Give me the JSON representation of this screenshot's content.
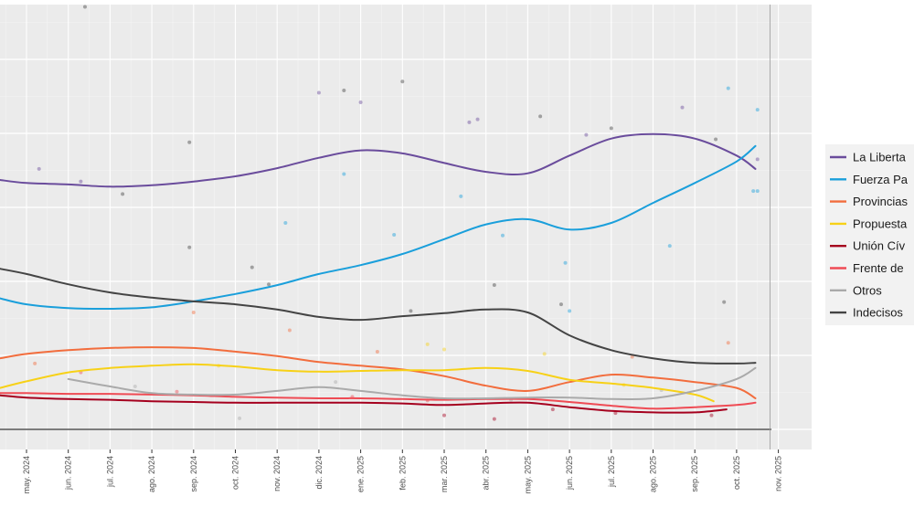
{
  "chart_data": {
    "type": "line",
    "title": "",
    "xlabel": "",
    "ylabel": "",
    "x_unit": "months since may. 2024",
    "x_range": [
      -0.63,
      18.8
    ],
    "ylim": [
      -2.7,
      57.7
    ],
    "grid": true,
    "legend_position": "right",
    "x_ticks": [
      {
        "pos": 0,
        "label": "may. 2024"
      },
      {
        "pos": 1,
        "label": "jun. 2024"
      },
      {
        "pos": 2,
        "label": "jul. 2024"
      },
      {
        "pos": 3,
        "label": "ago. 2024"
      },
      {
        "pos": 4,
        "label": "sep. 2024"
      },
      {
        "pos": 5,
        "label": "oct. 2024"
      },
      {
        "pos": 6,
        "label": "nov. 2024"
      },
      {
        "pos": 7,
        "label": "dic. 2024"
      },
      {
        "pos": 8,
        "label": "ene. 2025"
      },
      {
        "pos": 9,
        "label": "feb. 2025"
      },
      {
        "pos": 10,
        "label": "mar. 2025"
      },
      {
        "pos": 11,
        "label": "abr. 2025"
      },
      {
        "pos": 12,
        "label": "may. 2025"
      },
      {
        "pos": 13,
        "label": "jun. 2025"
      },
      {
        "pos": 14,
        "label": "jul. 2025"
      },
      {
        "pos": 15,
        "label": "ago. 2025"
      },
      {
        "pos": 16,
        "label": "sep. 2025"
      },
      {
        "pos": 17,
        "label": "oct. 2025"
      },
      {
        "pos": 18,
        "label": "nov. 2025"
      }
    ],
    "y_grid_major": [
      0,
      10,
      20,
      30,
      40,
      50
    ],
    "y_grid_minor": [
      5,
      15,
      25,
      35,
      45,
      55
    ],
    "reference_lines": {
      "horizontal": 0,
      "vertical": 17.8
    },
    "series": [
      {
        "name": "La Libertad Avanza",
        "legend_label": "La Liberta",
        "color": "#6a4c9c",
        "x": [
          -0.63,
          0,
          1,
          2,
          3,
          4,
          5,
          6,
          7,
          8,
          9,
          10,
          11,
          12,
          13,
          14,
          15,
          16,
          17,
          17.45
        ],
        "values": [
          33.7,
          33.3,
          33.1,
          32.8,
          33.0,
          33.5,
          34.2,
          35.3,
          36.7,
          37.7,
          37.3,
          36.0,
          34.8,
          34.6,
          37.0,
          39.3,
          39.9,
          39.3,
          37.0,
          35.2
        ]
      },
      {
        "name": "Fuerza Patria",
        "legend_label": "Fuerza Pa",
        "color": "#1a9fdb",
        "x": [
          -0.63,
          0,
          1,
          2,
          3,
          4,
          5,
          6,
          7,
          8,
          9,
          10,
          11,
          12,
          13,
          14,
          15,
          16,
          17,
          17.45
        ],
        "values": [
          17.7,
          16.9,
          16.4,
          16.3,
          16.5,
          17.3,
          18.3,
          19.5,
          21.0,
          22.2,
          23.7,
          25.7,
          27.7,
          28.4,
          27.0,
          27.9,
          30.6,
          33.3,
          36.2,
          38.3
        ]
      },
      {
        "name": "Provincias Unidas",
        "legend_label": "Provincias",
        "color": "#f26d3d",
        "x": [
          -0.63,
          0,
          1,
          2,
          3,
          4,
          5,
          6,
          7,
          8,
          9,
          10,
          11,
          12,
          13,
          14,
          15,
          16,
          17,
          17.45
        ],
        "values": [
          9.6,
          10.2,
          10.7,
          11.0,
          11.1,
          11.0,
          10.5,
          9.9,
          9.1,
          8.6,
          8.1,
          7.2,
          5.9,
          5.2,
          6.4,
          7.4,
          7.0,
          6.4,
          5.6,
          4.2
        ]
      },
      {
        "name": "Propuesta Republicana",
        "legend_label": "Propuesta",
        "color": "#f7d117",
        "x": [
          -0.63,
          0,
          1,
          2,
          3,
          4,
          5,
          6,
          7,
          8,
          9,
          10,
          11,
          12,
          13,
          14,
          15,
          16,
          16.45
        ],
        "values": [
          5.6,
          6.5,
          7.7,
          8.3,
          8.6,
          8.8,
          8.5,
          8.0,
          7.8,
          7.9,
          8.0,
          8.0,
          8.3,
          7.9,
          6.7,
          6.2,
          5.6,
          4.7,
          3.8
        ]
      },
      {
        "name": "Unión Cívica Radical",
        "legend_label": "Unión Cív",
        "color": "#a5001e",
        "x": [
          -0.63,
          0,
          1,
          2,
          3,
          4,
          5,
          6,
          7,
          8,
          9,
          10,
          11,
          12,
          13,
          14,
          15,
          16,
          16.76
        ],
        "values": [
          4.6,
          4.3,
          4.1,
          4.0,
          3.8,
          3.7,
          3.6,
          3.6,
          3.6,
          3.6,
          3.5,
          3.3,
          3.5,
          3.6,
          3.0,
          2.5,
          2.3,
          2.3,
          2.7
        ]
      },
      {
        "name": "Frente de Izquierda",
        "legend_label": "Frente de",
        "color": "#ef4b54",
        "x": [
          -0.63,
          0,
          1,
          2,
          3,
          4,
          5,
          6,
          7,
          8,
          9,
          10,
          11,
          12,
          13,
          14,
          15,
          16,
          17,
          17.45
        ],
        "values": [
          4.9,
          4.9,
          4.8,
          4.8,
          4.7,
          4.6,
          4.4,
          4.3,
          4.2,
          4.2,
          4.1,
          4.0,
          4.1,
          4.1,
          3.7,
          3.2,
          2.8,
          3.0,
          3.3,
          3.6
        ]
      },
      {
        "name": "Otros",
        "legend_label": "Otros",
        "color": "#aaaaaa",
        "x": [
          1,
          2,
          3,
          4,
          5,
          6,
          7,
          8,
          9,
          10,
          11,
          12,
          13,
          14,
          15,
          16,
          17,
          17.45
        ],
        "values": [
          6.8,
          5.8,
          4.9,
          4.7,
          4.7,
          5.2,
          5.7,
          5.2,
          4.6,
          4.2,
          4.2,
          4.3,
          4.3,
          4.1,
          4.2,
          5.2,
          6.8,
          8.3
        ]
      },
      {
        "name": "Indecisos",
        "legend_label": "Indecisos",
        "color": "#444444",
        "x": [
          -0.63,
          0,
          1,
          2,
          3,
          4,
          5,
          6,
          7,
          8,
          9,
          10,
          11,
          12,
          13,
          14,
          15,
          16,
          17,
          17.45
        ],
        "values": [
          21.7,
          21.0,
          19.6,
          18.5,
          17.8,
          17.3,
          16.9,
          16.2,
          15.2,
          14.8,
          15.3,
          15.7,
          16.2,
          15.8,
          12.7,
          10.7,
          9.6,
          9.0,
          8.9,
          9.0
        ]
      }
    ],
    "points": [
      {
        "series": 7,
        "x": 1.4,
        "y": 57.1
      },
      {
        "series": 0,
        "x": 7.0,
        "y": 45.5
      },
      {
        "series": 7,
        "x": 7.6,
        "y": 45.8
      },
      {
        "series": 0,
        "x": 8.0,
        "y": 44.2
      },
      {
        "series": 7,
        "x": 9.0,
        "y": 47.0
      },
      {
        "series": 7,
        "x": 3.9,
        "y": 38.8
      },
      {
        "series": 0,
        "x": 0.3,
        "y": 35.2
      },
      {
        "series": 0,
        "x": 1.3,
        "y": 33.5
      },
      {
        "series": 7,
        "x": 2.3,
        "y": 31.8
      },
      {
        "series": 0,
        "x": 10.6,
        "y": 41.5
      },
      {
        "series": 0,
        "x": 10.8,
        "y": 41.9
      },
      {
        "series": 7,
        "x": 12.3,
        "y": 42.3
      },
      {
        "series": 0,
        "x": 13.4,
        "y": 39.8
      },
      {
        "series": 7,
        "x": 14.0,
        "y": 40.7
      },
      {
        "series": 0,
        "x": 15.7,
        "y": 43.5
      },
      {
        "series": 7,
        "x": 16.5,
        "y": 39.2
      },
      {
        "series": 1,
        "x": 16.8,
        "y": 46.1
      },
      {
        "series": 1,
        "x": 17.5,
        "y": 43.2
      },
      {
        "series": 0,
        "x": 17.5,
        "y": 36.5
      },
      {
        "series": 1,
        "x": 17.4,
        "y": 32.2
      },
      {
        "series": 1,
        "x": 17.5,
        "y": 32.2
      },
      {
        "series": 7,
        "x": 5.8,
        "y": 19.6
      },
      {
        "series": 1,
        "x": 6.2,
        "y": 27.9
      },
      {
        "series": 1,
        "x": 7.6,
        "y": 34.5
      },
      {
        "series": 1,
        "x": 8.8,
        "y": 26.3
      },
      {
        "series": 1,
        "x": 10.4,
        "y": 31.5
      },
      {
        "series": 1,
        "x": 11.4,
        "y": 26.2
      },
      {
        "series": 1,
        "x": 12.9,
        "y": 22.5
      },
      {
        "series": 1,
        "x": 13.0,
        "y": 16.0
      },
      {
        "series": 1,
        "x": 15.4,
        "y": 24.8
      },
      {
        "series": 7,
        "x": 3.9,
        "y": 24.6
      },
      {
        "series": 7,
        "x": 5.4,
        "y": 21.9
      },
      {
        "series": 7,
        "x": 9.2,
        "y": 16.0
      },
      {
        "series": 7,
        "x": 11.2,
        "y": 19.5
      },
      {
        "series": 7,
        "x": 12.8,
        "y": 16.9
      },
      {
        "series": 7,
        "x": 16.7,
        "y": 17.2
      },
      {
        "series": 2,
        "x": 0.2,
        "y": 8.9
      },
      {
        "series": 2,
        "x": 4.0,
        "y": 15.8
      },
      {
        "series": 2,
        "x": 6.3,
        "y": 13.4
      },
      {
        "series": 2,
        "x": 8.4,
        "y": 10.5
      },
      {
        "series": 2,
        "x": 14.5,
        "y": 9.8
      },
      {
        "series": 2,
        "x": 16.8,
        "y": 11.7
      },
      {
        "series": 3,
        "x": 4.6,
        "y": 8.6
      },
      {
        "series": 3,
        "x": 9.6,
        "y": 11.5
      },
      {
        "series": 3,
        "x": 10.0,
        "y": 10.8
      },
      {
        "series": 3,
        "x": 12.4,
        "y": 10.2
      },
      {
        "series": 3,
        "x": 14.3,
        "y": 6.0
      },
      {
        "series": 5,
        "x": 1.3,
        "y": 7.7
      },
      {
        "series": 5,
        "x": 3.6,
        "y": 5.1
      },
      {
        "series": 5,
        "x": 7.8,
        "y": 4.4
      },
      {
        "series": 5,
        "x": 9.6,
        "y": 3.9
      },
      {
        "series": 4,
        "x": 10.0,
        "y": 1.9
      },
      {
        "series": 4,
        "x": 11.2,
        "y": 1.4
      },
      {
        "series": 4,
        "x": 12.6,
        "y": 2.7
      },
      {
        "series": 4,
        "x": 14.1,
        "y": 2.2
      },
      {
        "series": 4,
        "x": 16.4,
        "y": 1.9
      },
      {
        "series": 6,
        "x": 2.6,
        "y": 5.8
      },
      {
        "series": 6,
        "x": 5.1,
        "y": 1.5
      },
      {
        "series": 6,
        "x": 7.4,
        "y": 6.4
      },
      {
        "series": 6,
        "x": 11.6,
        "y": 4.0
      },
      {
        "series": 6,
        "x": 15.2,
        "y": 5.3
      }
    ]
  }
}
